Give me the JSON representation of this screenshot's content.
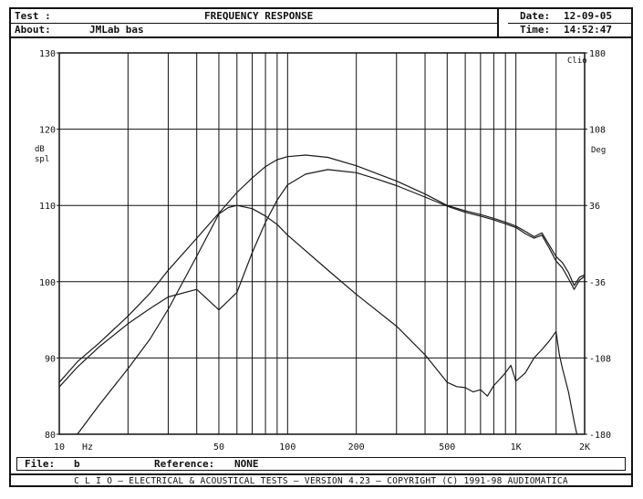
{
  "header": {
    "test_label": "Test :",
    "title": "FREQUENCY RESPONSE",
    "about_label": "About:",
    "about_value": "JMLab bas",
    "date_label": "Date:",
    "date_value": "12-09-05",
    "time_label": "Time:",
    "time_value": "14:52:47"
  },
  "chart_data": {
    "type": "line",
    "x_scale": "log",
    "xlim": [
      10,
      2000
    ],
    "ylim": [
      80,
      130
    ],
    "y2lim": [
      -180,
      180
    ],
    "grid": true,
    "ylabel": [
      "dB",
      "spl"
    ],
    "y2label": "Deg",
    "corner_label": "Clio",
    "x_unit_label": "Hz",
    "x_ticks": [
      {
        "value": 10,
        "label": "10"
      },
      {
        "value": 50,
        "label": "50"
      },
      {
        "value": 100,
        "label": "100"
      },
      {
        "value": 200,
        "label": "200"
      },
      {
        "value": 500,
        "label": "500"
      },
      {
        "value": 1000,
        "label": "1K"
      },
      {
        "value": 2000,
        "label": "2K"
      }
    ],
    "x_gridlines": [
      20,
      30,
      40,
      50,
      60,
      70,
      80,
      90,
      100,
      200,
      300,
      400,
      500,
      600,
      700,
      800,
      900,
      1000,
      1500,
      2000
    ],
    "y_ticks": [
      {
        "value": 80,
        "label": "80"
      },
      {
        "value": 90,
        "label": "90"
      },
      {
        "value": 100,
        "label": "100"
      },
      {
        "value": 110,
        "label": "110"
      },
      {
        "value": 120,
        "label": "120"
      },
      {
        "value": 130,
        "label": "130"
      }
    ],
    "y2_ticks": [
      {
        "value": -180,
        "label": "-180"
      },
      {
        "value": -108,
        "label": "-108"
      },
      {
        "value": -36,
        "label": "-36"
      },
      {
        "value": 36,
        "label": "36"
      },
      {
        "value": 108,
        "label": "108"
      },
      {
        "value": 180,
        "label": "180"
      }
    ],
    "series": [
      {
        "axis": "left",
        "x": [
          10,
          12,
          15,
          20,
          25,
          30,
          40,
          50,
          60,
          70,
          80,
          90,
          100,
          120,
          150,
          200,
          250,
          300,
          400,
          500,
          600,
          700,
          800,
          900,
          1000,
          1100,
          1200,
          1300,
          1400,
          1500,
          1600,
          1700,
          1800,
          1900,
          2000
        ],
        "values": [
          86.8,
          89.5,
          92.0,
          95.5,
          98.5,
          101.5,
          105.7,
          109.0,
          111.7,
          113.6,
          115.1,
          116.0,
          116.4,
          116.6,
          116.3,
          115.2,
          114.1,
          113.2,
          111.5,
          110.0,
          109.3,
          108.8,
          108.3,
          107.8,
          107.3,
          106.6,
          105.9,
          106.4,
          104.8,
          103.3,
          102.5,
          101.2,
          99.5,
          100.6,
          100.9
        ]
      },
      {
        "axis": "left",
        "x": [
          10,
          12,
          15,
          20,
          25,
          30,
          40,
          50,
          60,
          70,
          80,
          90,
          100,
          120,
          150,
          200,
          250,
          300,
          400,
          500,
          600,
          700,
          800,
          900,
          1000,
          1100,
          1200,
          1300,
          1400,
          1500,
          1600,
          1700,
          1800,
          1900,
          2000
        ],
        "values": [
          86.2,
          88.8,
          91.5,
          94.5,
          96.5,
          98.0,
          99.0,
          96.3,
          98.6,
          103.8,
          107.8,
          110.7,
          112.7,
          114.1,
          114.7,
          114.3,
          113.4,
          112.6,
          111.1,
          109.9,
          109.1,
          108.6,
          108.1,
          107.6,
          107.1,
          106.3,
          105.7,
          106.1,
          104.4,
          102.7,
          101.8,
          100.4,
          99.0,
          100.2,
          100.7
        ]
      },
      {
        "axis": "right",
        "x": [
          12,
          15,
          20,
          25,
          30,
          40,
          50,
          55,
          60,
          70,
          80,
          90,
          100,
          150,
          200,
          300,
          400,
          500,
          550,
          600,
          650,
          700,
          750,
          800,
          850,
          900,
          950,
          1000,
          1100,
          1200,
          1300,
          1400,
          1500,
          1550,
          1600,
          1700,
          1800,
          1850
        ],
        "values": [
          -180,
          -152,
          -118,
          -90,
          -62,
          -12,
          28,
          34,
          36,
          33,
          26,
          18,
          8,
          -25,
          -48,
          -78,
          -105,
          -131,
          -135,
          -136,
          -140,
          -138,
          -144,
          -134,
          -128,
          -122,
          -115,
          -130,
          -122,
          -108,
          -100,
          -92,
          -83,
          -105,
          -118,
          -140,
          -168,
          -180
        ]
      }
    ]
  },
  "file_bar": {
    "file_label": "File:",
    "file_value": "b",
    "reference_label": "Reference:",
    "reference_value": "NONE"
  },
  "footer": {
    "text": "C L I O  –  ELECTRICAL & ACOUSTICAL TESTS  –  VERSION 4.23  –  COPYRIGHT (C) 1991-98 AUDIOMATICA"
  }
}
